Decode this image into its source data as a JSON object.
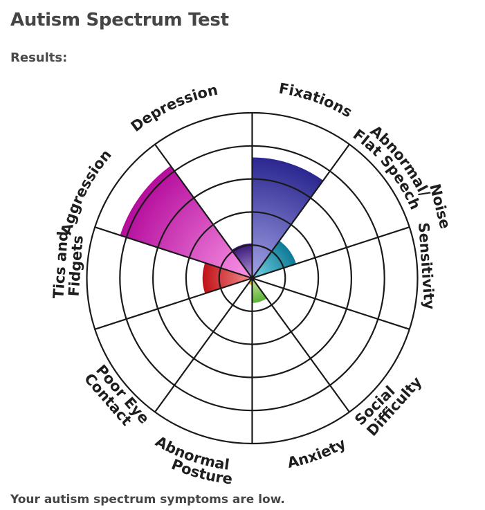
{
  "page": {
    "title": "Autism Spectrum Test",
    "subtitle": "Results:",
    "result_text": "Your autism spectrum symptoms are low."
  },
  "chart_data": {
    "type": "polar-area",
    "title": "Autism Spectrum Test Results",
    "scale_max": 100,
    "rings": 5,
    "categories": [
      "Fixations",
      "Abnormal/ Flat Speech",
      "Noise Sensitivity",
      "Social Difficulty",
      "Anxiety",
      "Abnormal Posture",
      "Poor Eye Contact",
      "Tics and Fidgets",
      "Aggression",
      "Depression"
    ],
    "values": [
      73,
      28,
      0,
      0,
      15,
      4,
      0,
      30,
      84,
      21
    ],
    "colors": [
      {
        "outer": "#2b2790",
        "inner": "#a3a3e6"
      },
      {
        "outer": "#0e7a96",
        "inner": "#7ad6e6"
      },
      {
        "outer": "#888888",
        "inner": "#cccccc"
      },
      {
        "outer": "#888888",
        "inner": "#cccccc"
      },
      {
        "outer": "#58b235",
        "inner": "#cfe6a8"
      },
      {
        "outer": "#e5a81a",
        "inner": "#f6d35a"
      },
      {
        "outer": "#888888",
        "inner": "#cccccc"
      },
      {
        "outer": "#bf1116",
        "inner": "#f49090"
      },
      {
        "outer": "#b50c9c",
        "inner": "#f896e6"
      },
      {
        "outer": "#371678",
        "inner": "#b89ad6"
      }
    ]
  },
  "labels": {
    "fixations": "Fixations",
    "flat_speech_1": "Abnormal/",
    "flat_speech_2": "Flat Speech",
    "noise_1": "Noise",
    "noise_2": "Sensitivity",
    "social_1": "Social",
    "social_2": "Difficulty",
    "anxiety": "Anxiety",
    "posture_1": "Abnormal",
    "posture_2": "Posture",
    "eye_1": "Poor Eye",
    "eye_2": "Contact",
    "tics_1": "Tics and",
    "tics_2": "Fidgets",
    "aggression": "Aggression",
    "depression": "Depression"
  }
}
